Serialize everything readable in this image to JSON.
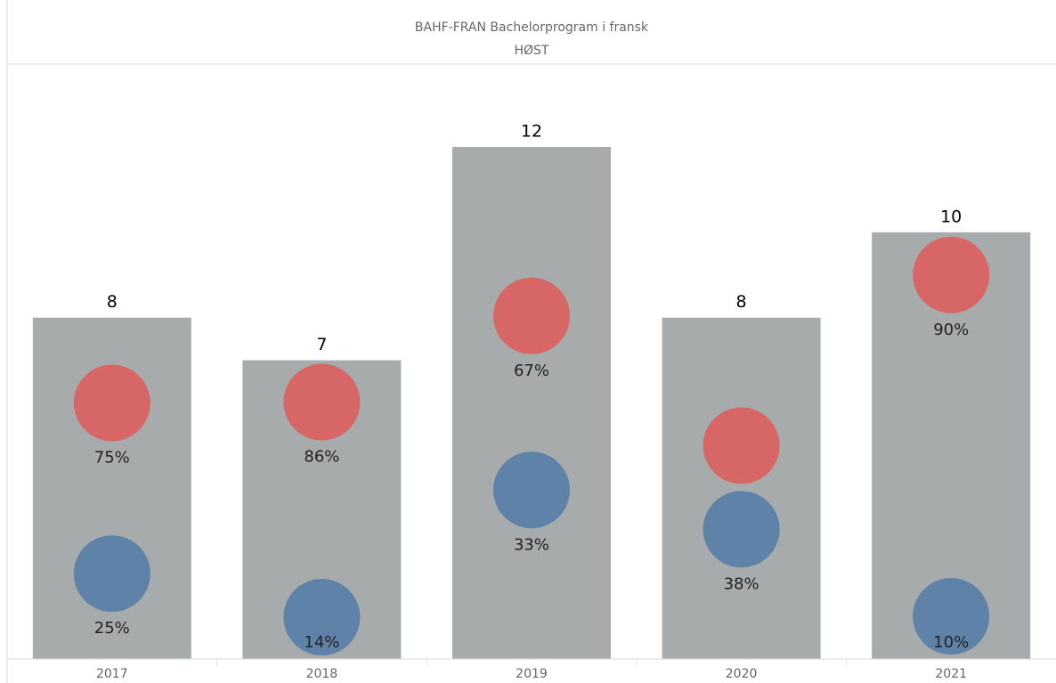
{
  "chart_data": {
    "type": "bar",
    "title": "BAHF-FRAN Bachelorprogram i fransk",
    "subtitle": "HØST",
    "categories": [
      "2017",
      "2018",
      "2019",
      "2020",
      "2021"
    ],
    "values": [
      8,
      7,
      12,
      8,
      10
    ],
    "color": "#a7abab",
    "ylim": [
      0,
      13.9
    ],
    "series": [
      {
        "color": "#d66766",
        "values": [
          75,
          86,
          67,
          62.5,
          90
        ],
        "value_labels": [
          "75%",
          "86%",
          "67%",
          null,
          "90%"
        ]
      },
      {
        "color": "#5f82a8",
        "values": [
          25,
          14,
          33,
          38,
          10
        ],
        "value_labels": [
          "25%",
          "14%",
          "33%",
          "38%",
          "10%"
        ]
      }
    ]
  }
}
